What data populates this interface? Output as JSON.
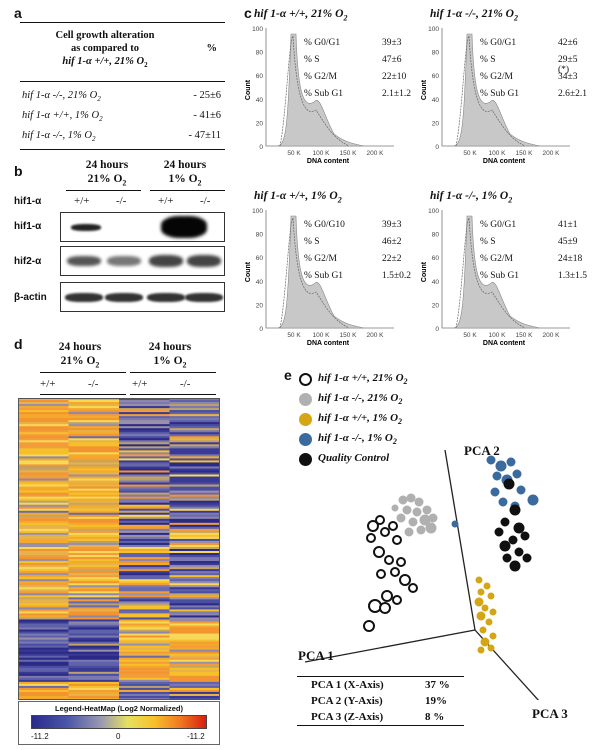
{
  "panels": {
    "a": "a",
    "b": "b",
    "c": "c",
    "d": "d",
    "e": "e"
  },
  "table_a": {
    "header_line1": "Cell growth alteration",
    "header_line2": "as compared to",
    "header_line3": "hif 1-α +/+, 21% O",
    "header_sub": "2",
    "header_pct": "%",
    "rows": [
      {
        "label": "hif 1-α -/-, 21% O",
        "sub": "2",
        "value": "- 25±6"
      },
      {
        "label": "hif 1-α +/+, 1% O",
        "sub": "2",
        "value": "- 41±6"
      },
      {
        "label": "hif 1-α -/-, 1% O",
        "sub": "2",
        "value": "- 47±11"
      }
    ]
  },
  "blot": {
    "group1_line1": "24 hours",
    "group1_line2": "21% O",
    "group1_sub": "2",
    "group2_line1": "24 hours",
    "group2_line2": "1% O",
    "group2_sub": "2",
    "genotype_label": "hif1-α",
    "genotypes": [
      "+/+",
      "-/-",
      "+/+",
      "-/-"
    ],
    "rows": [
      "hif1-α",
      "hif2-α",
      "β-actin"
    ]
  },
  "flow": {
    "ylabel": "Count",
    "xlabel": "DNA content",
    "xticks": [
      "50 K",
      "100 K",
      "150 K",
      "200 K"
    ],
    "yticks": [
      "100",
      "80",
      "60",
      "40",
      "20",
      "0"
    ],
    "panels": [
      {
        "title": "hif 1-α +/+, 21% O",
        "sub": "2",
        "stats": [
          [
            "% G0/G1",
            "39±3"
          ],
          [
            "% S",
            "47±6"
          ],
          [
            "% G2/M",
            "22±10"
          ],
          [
            "% Sub G1",
            "2.1±1.2"
          ]
        ]
      },
      {
        "title": "hif 1-α -/-, 21% O",
        "sub": "2",
        "stats": [
          [
            "% G0/G1",
            "42±6"
          ],
          [
            "% S",
            "29±5 (*)"
          ],
          [
            "% G2/M",
            "34±3"
          ],
          [
            "% Sub G1",
            "2.6±2.1"
          ]
        ]
      },
      {
        "title": "hif 1-α +/+, 1% O",
        "sub": "2",
        "stats": [
          [
            "% G0/G10",
            "39±3"
          ],
          [
            "% S",
            "46±2"
          ],
          [
            "% G2/M",
            "22±2"
          ],
          [
            "% Sub G1",
            "1.5±0.2"
          ]
        ]
      },
      {
        "title": "hif 1-α -/-, 1% O",
        "sub": "2",
        "stats": [
          [
            "% G0/G1",
            "41±1"
          ],
          [
            "% S",
            "45±9"
          ],
          [
            "% G2/M",
            "24±18"
          ],
          [
            "% Sub G1",
            "1.3±1.5"
          ]
        ]
      }
    ]
  },
  "heatmap": {
    "group1_line1": "24 hours",
    "group1_line2": "21% O",
    "group1_sub": "2",
    "group2_line1": "24 hours",
    "group2_line2": "1% O",
    "group2_sub": "2",
    "genotypes": [
      "+/+",
      "-/-",
      "+/+",
      "-/-"
    ],
    "legend_title": "Legend-HeatMap (Log2 Normalized)",
    "legend_ticks": [
      "-11.2",
      "0",
      "-11.2"
    ]
  },
  "pca": {
    "legend": [
      {
        "label": "hif 1-α +/+, 21% O",
        "sub": "2",
        "color": "#ffffff",
        "stroke": "#111111"
      },
      {
        "label": "hif 1-α -/-, 21% O",
        "sub": "2",
        "color": "#b0b0b0",
        "stroke": "#b0b0b0"
      },
      {
        "label": "hif 1-α +/+, 1% O",
        "sub": "2",
        "color": "#d4a514",
        "stroke": "#d4a514"
      },
      {
        "label": "hif 1-α -/-, 1% O",
        "sub": "2",
        "color": "#3b6a9e",
        "stroke": "#3b6a9e"
      },
      {
        "label": "Quality Control",
        "sub": "",
        "color": "#111111",
        "stroke": "#111111"
      }
    ],
    "axis_labels": [
      "PCA 1",
      "PCA 2",
      "PCA 3"
    ],
    "variance": [
      {
        "axis": "PCA 1 (X-Axis)",
        "value": "37 %"
      },
      {
        "axis": "PCA 2 (Y-Axis)",
        "value": "19%"
      },
      {
        "axis": "PCA 3 (Z-Axis)",
        "value": "8 %"
      }
    ]
  }
}
